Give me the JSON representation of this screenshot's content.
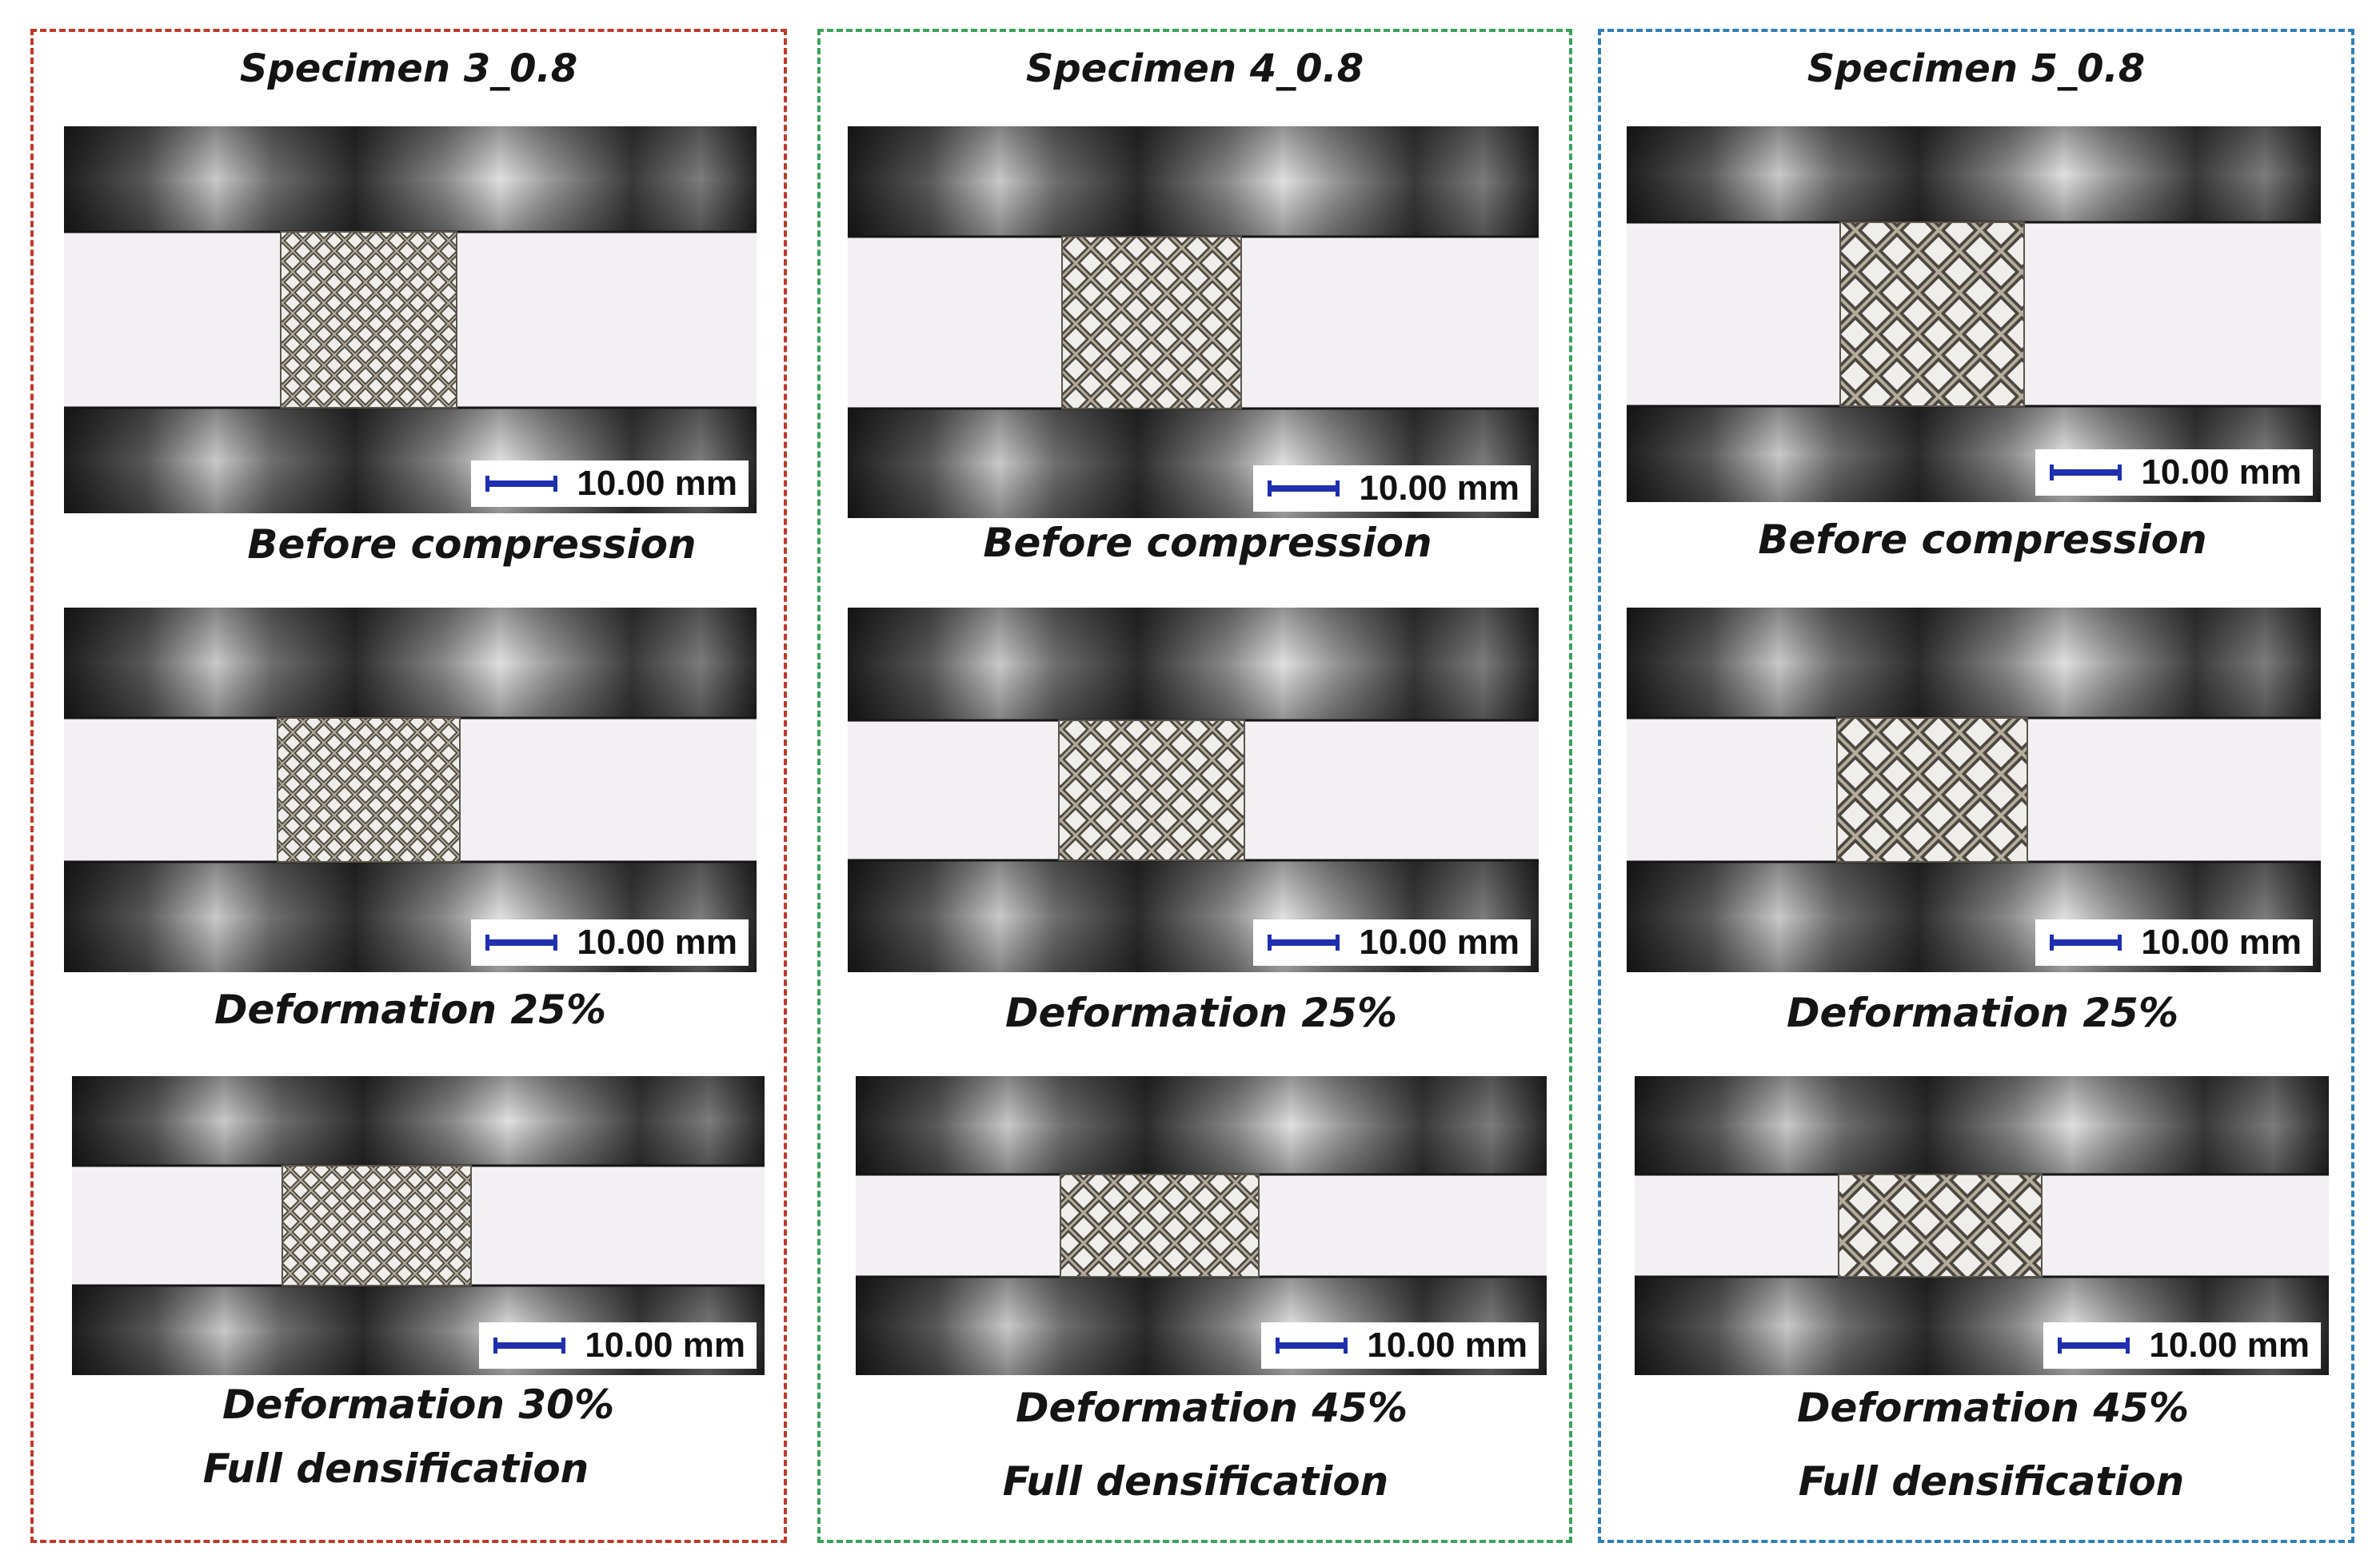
{
  "frame_colors": [
    "#c0392b",
    "#3aa35a",
    "#2e7fb8"
  ],
  "columns": [
    {
      "title": "Specimen 3_0.8",
      "panels": [
        {
          "caption_lines": [
            "Before compression"
          ],
          "scale_label": "10.00 mm"
        },
        {
          "caption_lines": [
            "Deformation 25%"
          ],
          "scale_label": "10.00 mm"
        },
        {
          "caption_lines": [
            "Deformation 30%",
            "Full densification"
          ],
          "scale_label": "10.00 mm"
        }
      ]
    },
    {
      "title": "Specimen 4_0.8",
      "panels": [
        {
          "caption_lines": [
            "Before compression"
          ],
          "scale_label": "10.00 mm"
        },
        {
          "caption_lines": [
            "Deformation 25%"
          ],
          "scale_label": "10.00 mm"
        },
        {
          "caption_lines": [
            "Deformation 45%",
            "Full densification"
          ],
          "scale_label": "10.00 mm"
        }
      ]
    },
    {
      "title": "Specimen 5_0.8",
      "panels": [
        {
          "caption_lines": [
            "Before compression"
          ],
          "scale_label": "10.00 mm"
        },
        {
          "caption_lines": [
            "Deformation 25%"
          ],
          "scale_label": "10.00 mm"
        },
        {
          "caption_lines": [
            "Deformation 45%",
            "Full densification"
          ],
          "scale_label": "10.00 mm"
        }
      ]
    }
  ]
}
